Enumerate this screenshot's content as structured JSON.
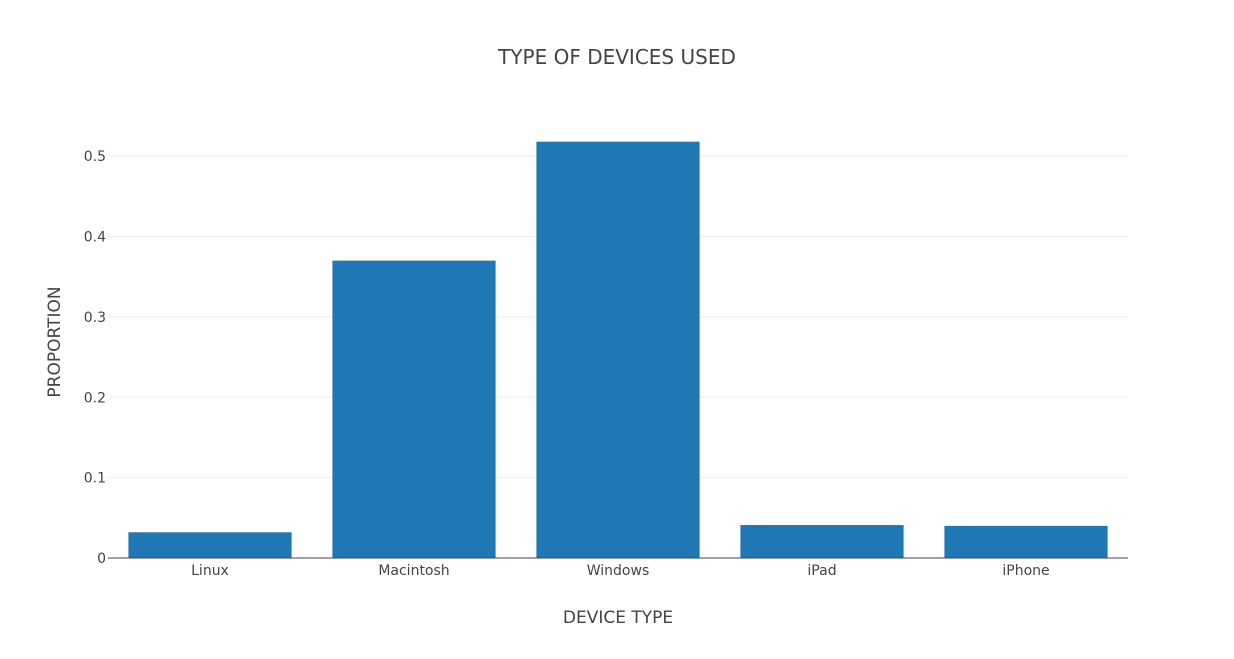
{
  "chart_data": {
    "type": "bar",
    "title": "TYPE OF DEVICES USED",
    "xlabel": "DEVICE TYPE",
    "ylabel": "PROPORTION",
    "categories": [
      "Linux",
      "Macintosh",
      "Windows",
      "iPad",
      "iPhone"
    ],
    "values": [
      0.032,
      0.37,
      0.518,
      0.041,
      0.04
    ],
    "ylim": [
      0,
      0.54
    ],
    "yticks": [
      0,
      0.1,
      0.2,
      0.3,
      0.4,
      0.5
    ],
    "ytick_labels": [
      "0",
      "0.1",
      "0.2",
      "0.3",
      "0.4",
      "0.5"
    ],
    "grid": true,
    "legend": "none",
    "colors": {
      "bar": "#1f77b4",
      "grid": "#eeeeee",
      "axis": "#444444",
      "text": "#444444"
    }
  }
}
